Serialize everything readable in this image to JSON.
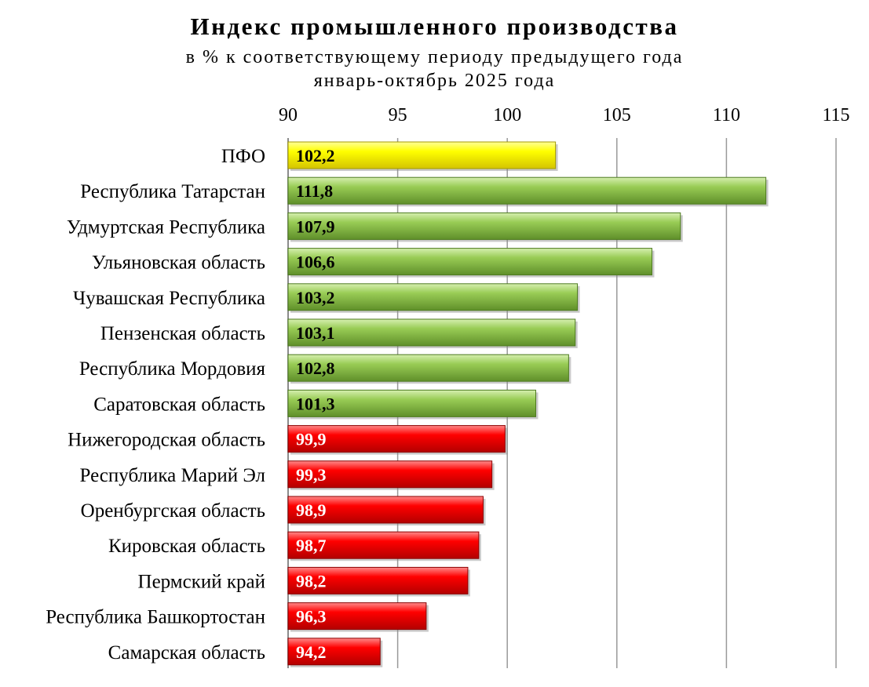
{
  "chart_data": {
    "type": "bar",
    "orientation": "horizontal",
    "title": "Индекс промышленного производства",
    "subtitle": "в % к соответствующему периоду предыдущего года",
    "period": "январь-октябрь 2025 года",
    "xlim": [
      90,
      115
    ],
    "ticks": [
      "90",
      "95",
      "100",
      "105",
      "110",
      "115"
    ],
    "grid": true,
    "categories": [
      "ПФО",
      "Республика Татарстан",
      "Удмуртская Республика",
      "Ульяновская область",
      "Чувашская Республика",
      "Пензенская область",
      "Республика Мордовия",
      "Саратовская область",
      "Нижегородская область",
      "Республика Марий Эл",
      "Оренбургская область",
      "Кировская область",
      "Пермский край",
      "Республика Башкортостан",
      "Самарская область"
    ],
    "values": [
      102.2,
      111.8,
      107.9,
      106.6,
      103.2,
      103.1,
      102.8,
      101.3,
      99.9,
      99.3,
      98.9,
      98.7,
      98.2,
      96.3,
      94.2
    ],
    "labels": [
      "102,2",
      "111,8",
      "107,9",
      "106,6",
      "103,2",
      "103,1",
      "102,8",
      "101,3",
      "99,9",
      "99,3",
      "98,9",
      "98,7",
      "98,2",
      "96,3",
      "94,2"
    ],
    "colors": {
      "federal_district": "#ffff00",
      "above_100": "#8cc63f",
      "below_100": "#ff0000",
      "label_dark": "#000000",
      "label_light": "#ffffff",
      "grid": "#999999"
    }
  }
}
